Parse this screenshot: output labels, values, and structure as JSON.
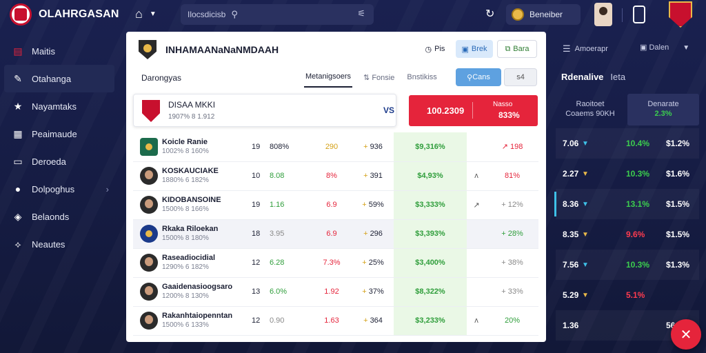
{
  "header": {
    "brand": "OLAHRGASAN",
    "search_value": "Ilocsdicisb",
    "account_label": "Beneiber"
  },
  "sidebar": {
    "items": [
      {
        "label": "Maitis",
        "icon": "chart-icon"
      },
      {
        "label": "Otahanga",
        "icon": "edit-icon"
      },
      {
        "label": "Nayamtaks",
        "icon": "star-icon"
      },
      {
        "label": "Peaimaude",
        "icon": "grid-icon"
      },
      {
        "label": "Deroeda",
        "icon": "monitor-icon"
      },
      {
        "label": "Dolpoghus",
        "icon": "user-icon"
      },
      {
        "label": "Belaonds",
        "icon": "tag-icon"
      },
      {
        "label": "Neautes",
        "icon": "share-icon"
      }
    ]
  },
  "card": {
    "title": "INHAMAANaNaNMDAAH",
    "btn_plain": "Pis",
    "btn_blue": "Brek",
    "btn_outline": "Bara",
    "sub_label": "Darongyas",
    "tabs": [
      "Metanigsoers",
      "Fonsie",
      "Bnstikiss"
    ],
    "tab_btn_blue": "Cans",
    "tab_btn_grey": "s4",
    "match": {
      "name": "DISAA MKKI",
      "sub": "1907% 8 1.912",
      "vs": "VS"
    },
    "red_box": {
      "value": "100.2309",
      "label1": "Nasso",
      "label2": "833%"
    },
    "players": [
      {
        "name": "Koicle Ranie",
        "meta": "1002% 8 160%",
        "c1": "19",
        "c2": "808%",
        "c3": "290",
        "c4": "936",
        "c5": "$9,316%",
        "c6": "",
        "c7": "198"
      },
      {
        "name": "KOSKAUCIAKE",
        "meta": "1880% 6 182%",
        "c1": "10",
        "c2": "8.08",
        "c3": "8%",
        "c4": "391",
        "c5": "$4,93%",
        "c6": "",
        "c7": "81%"
      },
      {
        "name": "KIDOBANSOINE",
        "meta": "1500% 8 166%",
        "c1": "19",
        "c2": "1.16",
        "c3": "6.9",
        "c4": "59%",
        "c5": "$3,333%",
        "c6": "",
        "c7": "12%"
      },
      {
        "name": "Rkaka Riloekan",
        "meta": "1500% 8 180%",
        "c1": "18",
        "c2": "3.95",
        "c3": "6.9",
        "c4": "296",
        "c5": "$3,393%",
        "c6": "",
        "c7": "28%"
      },
      {
        "name": "Raseadiocidial",
        "meta": "1290% 6 182%",
        "c1": "12",
        "c2": "6.28",
        "c3": "7.3%",
        "c4": "25%",
        "c5": "$3,400%",
        "c6": "",
        "c7": "38%"
      },
      {
        "name": "Gaaidenasioogsaro",
        "meta": "1200% 8 130%",
        "c1": "13",
        "c2": "6.0%",
        "c3": "1.92",
        "c4": "37%",
        "c5": "$8,322%",
        "c6": "",
        "c7": "33%"
      },
      {
        "name": "Rakanhtaiopenntan",
        "meta": "1500% 6 133%",
        "c1": "12",
        "c2": "0.90",
        "c3": "1.63",
        "c4": "364",
        "c5": "$3,233%",
        "c6": "",
        "c7": "20%"
      }
    ]
  },
  "right_panel": {
    "top_left": "Amoerapr",
    "top_right": "Dalen",
    "title": "Rdenalive",
    "title_sub": "Ieta",
    "head_left_1": "Raoitoet",
    "head_left_2": "Coaems 90KH",
    "head_right_1": "Denarate",
    "head_right_2": "2.3%",
    "rows": [
      {
        "v": "7.06",
        "p": "10.4%",
        "q": "$1.2%"
      },
      {
        "v": "2.27",
        "p": "10.3%",
        "q": "$1.6%"
      },
      {
        "v": "8.36",
        "p": "13.1%",
        "q": "$1.5%"
      },
      {
        "v": "8.35",
        "p": "9.6%",
        "q": "$1.5%"
      },
      {
        "v": "7.56",
        "p": "10.3%",
        "q": "$1.3%"
      },
      {
        "v": "5.29",
        "p": "5.1%",
        "q": ""
      },
      {
        "v": "1.36",
        "p": "",
        "q": "56"
      }
    ]
  },
  "colors": {
    "accent_red": "#e5243b",
    "accent_green": "#2e9d3a",
    "panel_dark": "#141a3a"
  }
}
